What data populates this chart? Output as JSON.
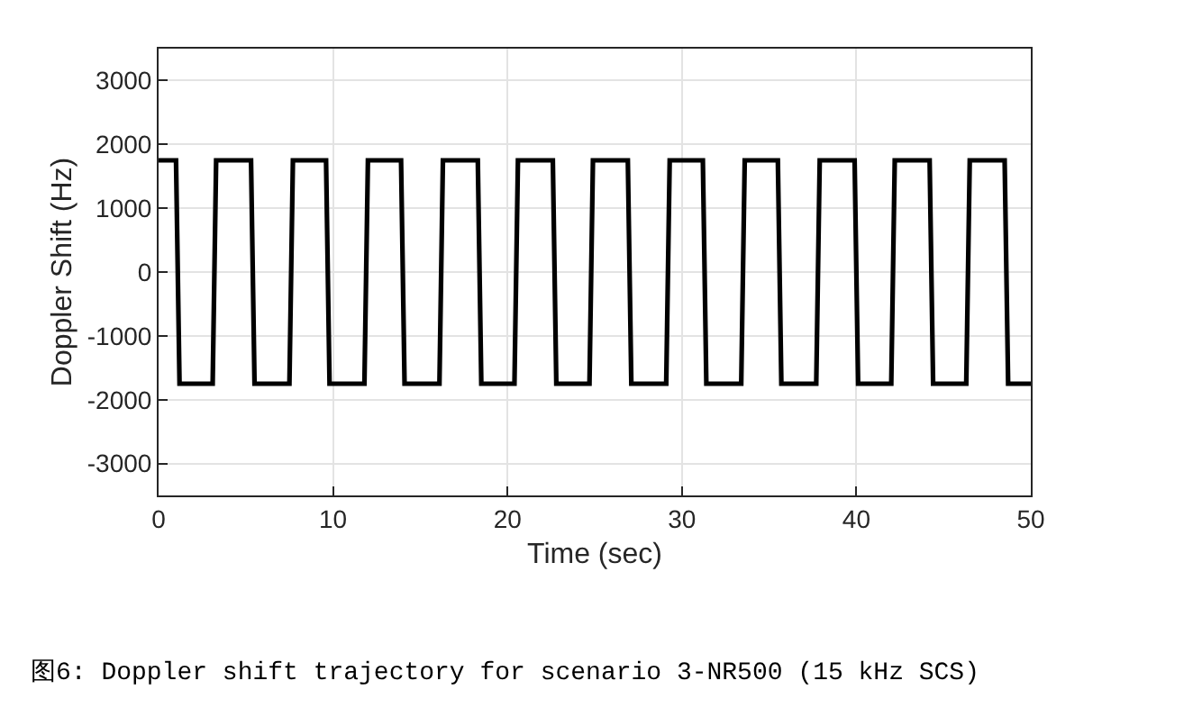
{
  "chart_data": {
    "type": "line",
    "xlabel": "Time (sec)",
    "ylabel": "Doppler Shift (Hz)",
    "x": [
      0,
      1.0,
      1.2,
      3.1,
      3.3,
      5.3,
      5.5,
      7.5,
      7.7,
      9.6,
      9.8,
      11.8,
      12.0,
      13.9,
      14.1,
      16.1,
      16.3,
      18.3,
      18.5,
      20.4,
      20.6,
      22.6,
      22.8,
      24.7,
      24.9,
      26.9,
      27.1,
      29.1,
      29.3,
      31.2,
      31.4,
      33.4,
      33.6,
      35.5,
      35.7,
      37.7,
      37.9,
      39.9,
      40.1,
      42.0,
      42.2,
      44.2,
      44.4,
      46.3,
      46.5,
      48.5,
      48.7,
      50
    ],
    "series": [
      {
        "color": "#000000",
        "values": [
          1750,
          1750,
          -1750,
          -1750,
          1750,
          1750,
          -1750,
          -1750,
          1750,
          1750,
          -1750,
          -1750,
          1750,
          1750,
          -1750,
          -1750,
          1750,
          1750,
          -1750,
          -1750,
          1750,
          1750,
          -1750,
          -1750,
          1750,
          1750,
          -1750,
          -1750,
          1750,
          1750,
          -1750,
          -1750,
          1750,
          1750,
          -1750,
          -1750,
          1750,
          1750,
          -1750,
          -1750,
          1750,
          1750,
          -1750,
          -1750,
          1750,
          1750,
          -1750,
          -1750
        ]
      }
    ],
    "xlim": [
      0,
      50
    ],
    "xticks": [
      0,
      10,
      20,
      30,
      40,
      50
    ],
    "ylim": [
      -3500,
      3500
    ],
    "yticks": [
      -3000,
      -2000,
      -1000,
      0,
      1000,
      2000,
      3000
    ],
    "grid": true,
    "marker": "none",
    "line_style": "solid",
    "annotations": [
      "图6: Doppler shift trajectory for scenario 3-NR500 (15 kHz SCS)"
    ]
  }
}
